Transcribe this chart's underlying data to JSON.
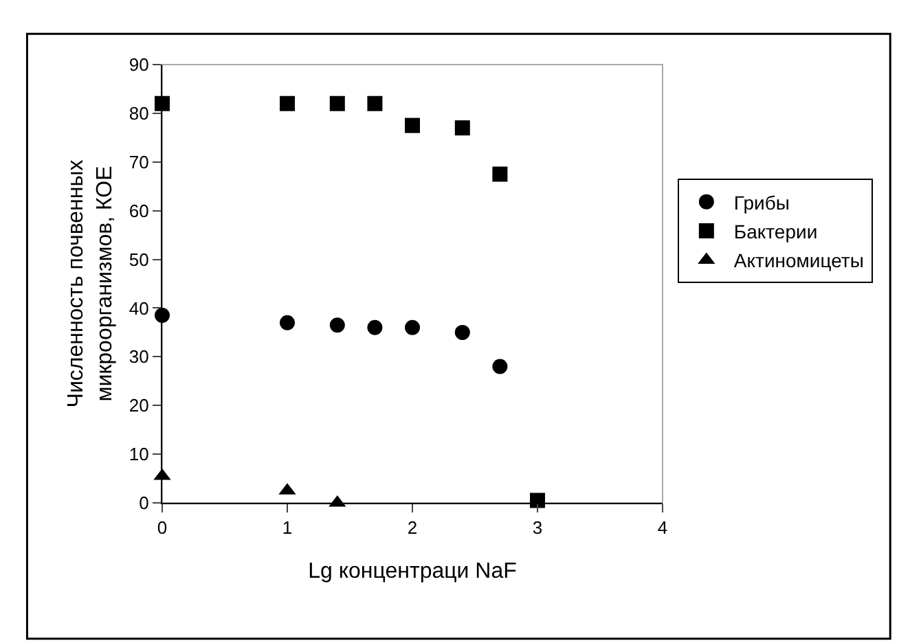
{
  "chart_data": {
    "type": "scatter",
    "xlabel": "Lg концентраци NaF",
    "ylabel": "Численность почвенных\nмикроорганизмов, КОЕ",
    "series": [
      {
        "name": "Грибы",
        "color": "#000000",
        "marker": "circle",
        "x": [
          0,
          1,
          1.4,
          1.7,
          2,
          2.4,
          2.7
        ],
        "values": [
          38.5,
          37,
          36.5,
          36,
          36,
          35,
          28
        ]
      },
      {
        "name": "Бактерии",
        "color": "#000000",
        "marker": "square",
        "x": [
          0,
          1,
          1.4,
          1.7,
          2,
          2.4,
          2.7,
          3
        ],
        "values": [
          82,
          82,
          82,
          82,
          77.5,
          77,
          67.5,
          0.5
        ]
      },
      {
        "name": "Актиномицеты",
        "color": "#000000",
        "marker": "triangle",
        "x": [
          0,
          1,
          1.4
        ],
        "values": [
          5.5,
          2.5,
          0
        ]
      }
    ],
    "xlim": [
      0,
      4
    ],
    "xticks": [
      0,
      1,
      2,
      3,
      4
    ],
    "ylim": [
      0,
      90
    ],
    "yticks": [
      0,
      10,
      20,
      30,
      40,
      50,
      60,
      70,
      80,
      90
    ],
    "grid": false,
    "legend": "right"
  }
}
